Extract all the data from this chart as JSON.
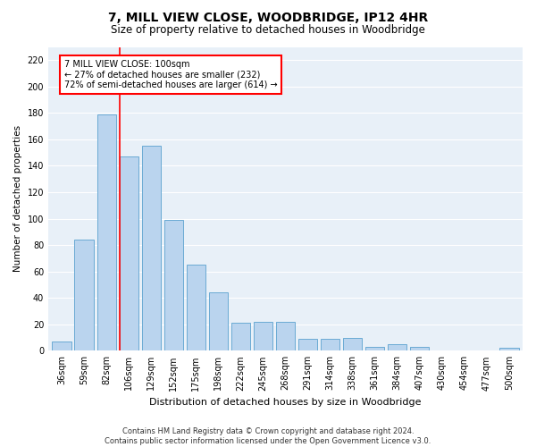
{
  "title": "7, MILL VIEW CLOSE, WOODBRIDGE, IP12 4HR",
  "subtitle": "Size of property relative to detached houses in Woodbridge",
  "xlabel": "Distribution of detached houses by size in Woodbridge",
  "ylabel": "Number of detached properties",
  "bar_labels": [
    "36sqm",
    "59sqm",
    "82sqm",
    "106sqm",
    "129sqm",
    "152sqm",
    "175sqm",
    "198sqm",
    "222sqm",
    "245sqm",
    "268sqm",
    "291sqm",
    "314sqm",
    "338sqm",
    "361sqm",
    "384sqm",
    "407sqm",
    "430sqm",
    "454sqm",
    "477sqm",
    "500sqm"
  ],
  "bar_values": [
    7,
    84,
    179,
    147,
    155,
    99,
    65,
    44,
    21,
    22,
    22,
    9,
    9,
    10,
    3,
    5,
    3,
    0,
    0,
    0,
    2
  ],
  "bar_color": "#bad4ee",
  "bar_edge_color": "#6aaad4",
  "vline_color": "red",
  "vline_x_idx": 3,
  "annotation_text": "7 MILL VIEW CLOSE: 100sqm\n← 27% of detached houses are smaller (232)\n72% of semi-detached houses are larger (614) →",
  "annotation_box_color": "white",
  "annotation_box_edge_color": "red",
  "ylim": [
    0,
    230
  ],
  "yticks": [
    0,
    20,
    40,
    60,
    80,
    100,
    120,
    140,
    160,
    180,
    200,
    220
  ],
  "footnote": "Contains HM Land Registry data © Crown copyright and database right 2024.\nContains public sector information licensed under the Open Government Licence v3.0.",
  "bg_color": "#e8f0f8",
  "grid_color": "#ffffff",
  "title_fontsize": 10,
  "subtitle_fontsize": 8.5,
  "xlabel_fontsize": 8,
  "ylabel_fontsize": 7.5,
  "tick_fontsize": 7,
  "annotation_fontsize": 7,
  "footnote_fontsize": 6
}
